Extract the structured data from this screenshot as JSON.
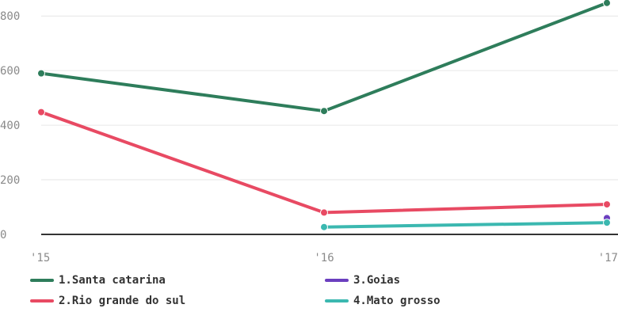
{
  "chart_data": {
    "type": "line",
    "title": "",
    "xlabel": "",
    "ylabel": "",
    "categories": [
      "'15",
      "'16",
      "'17"
    ],
    "y_ticks": [
      "0",
      "200",
      "400",
      "600",
      "800"
    ],
    "ylim": [
      0,
      850
    ],
    "grid": true,
    "legend_position": "bottom",
    "series": [
      {
        "name": "1.Santa catarina",
        "color": "#2e7d5b",
        "values": [
          590,
          452,
          848
        ]
      },
      {
        "name": "2.Rio grande do sul",
        "color": "#e84a63",
        "values": [
          448,
          80,
          110
        ]
      },
      {
        "name": "3.Goias",
        "color": "#6b3fbf",
        "values": [
          null,
          null,
          60
        ]
      },
      {
        "name": "4.Mato grosso",
        "color": "#3bb8b0",
        "values": [
          null,
          27,
          43
        ]
      }
    ]
  }
}
